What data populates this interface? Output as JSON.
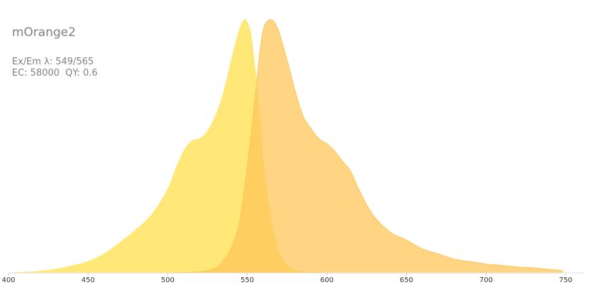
{
  "chart_data": {
    "type": "area",
    "title": "mOrange2",
    "subtitle_lines": [
      "Ex/Em λ: 549/565",
      "EC: 58000  QY: 0.6"
    ],
    "xlabel": "",
    "ylabel": "",
    "xlim": [
      400,
      750
    ],
    "ylim": [
      0,
      1
    ],
    "x_ticks": [
      "400",
      "450",
      "500",
      "550",
      "600",
      "650",
      "700",
      "750"
    ],
    "grid": false,
    "legend": "none",
    "series": [
      {
        "role": "excitation",
        "color": "#ffe770",
        "opacity": 0.95,
        "x": [
          400,
          410,
          420,
          430,
          440,
          450,
          460,
          470,
          480,
          490,
          500,
          505,
          510,
          515,
          520,
          525,
          530,
          535,
          540,
          545,
          548,
          549,
          552,
          555,
          558,
          560,
          565,
          570,
          575,
          580,
          590,
          600
        ],
        "y": [
          0.0,
          0.003,
          0.007,
          0.015,
          0.028,
          0.045,
          0.075,
          0.12,
          0.17,
          0.23,
          0.33,
          0.41,
          0.48,
          0.52,
          0.53,
          0.56,
          0.62,
          0.71,
          0.84,
          0.96,
          1.0,
          1.0,
          0.95,
          0.8,
          0.6,
          0.44,
          0.2,
          0.08,
          0.03,
          0.01,
          0.003,
          0.0
        ]
      },
      {
        "role": "emission",
        "color": "#ffc658",
        "opacity": 0.75,
        "x": [
          500,
          520,
          530,
          535,
          540,
          545,
          550,
          555,
          558,
          560,
          562,
          564,
          565,
          567,
          570,
          575,
          580,
          585,
          590,
          595,
          600,
          605,
          610,
          615,
          620,
          625,
          630,
          640,
          650,
          660,
          670,
          680,
          690,
          700,
          710,
          720,
          730,
          740,
          748
        ],
        "y": [
          0.0,
          0.005,
          0.02,
          0.05,
          0.1,
          0.2,
          0.42,
          0.7,
          0.88,
          0.96,
          0.99,
          1.0,
          1.0,
          0.99,
          0.95,
          0.84,
          0.72,
          0.62,
          0.57,
          0.53,
          0.51,
          0.48,
          0.44,
          0.4,
          0.33,
          0.27,
          0.22,
          0.16,
          0.13,
          0.095,
          0.075,
          0.055,
          0.045,
          0.035,
          0.03,
          0.023,
          0.02,
          0.014,
          0.01
        ]
      }
    ]
  }
}
